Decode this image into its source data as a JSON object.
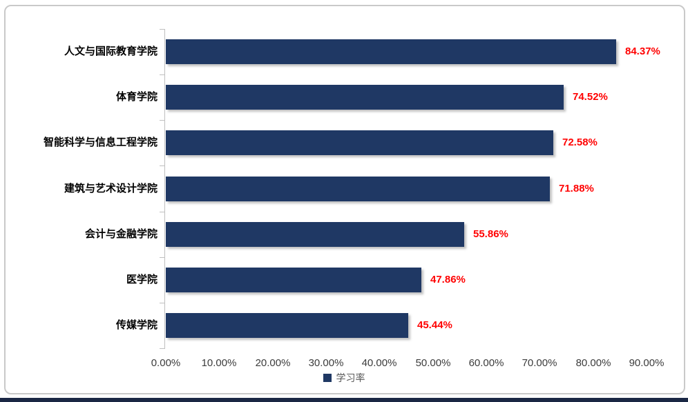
{
  "chart_data": {
    "type": "bar",
    "orientation": "horizontal",
    "title": "",
    "series_name": "学习率",
    "categories": [
      "人文与国际教育学院",
      "体育学院",
      "智能科学与信息工程学院",
      "建筑与艺术设计学院",
      "会计与金融学院",
      "医学院",
      "传媒学院"
    ],
    "values": [
      84.37,
      74.52,
      72.58,
      71.88,
      55.86,
      47.86,
      45.44
    ],
    "value_labels": [
      "84.37%",
      "74.52%",
      "72.58%",
      "71.88%",
      "55.86%",
      "47.86%",
      "45.44%"
    ],
    "x_tick_labels": [
      "0.00%",
      "10.00%",
      "20.00%",
      "30.00%",
      "40.00%",
      "50.00%",
      "60.00%",
      "70.00%",
      "80.00%",
      "90.00%"
    ],
    "xlim": [
      0,
      90
    ],
    "grid": false,
    "legend_position": "bottom",
    "bar_color": "#1f3864",
    "value_label_color": "#ff0000",
    "axis_color": "#bfbfbf"
  },
  "legend": {
    "label": "学习率",
    "marker_color": "#1f3864"
  }
}
